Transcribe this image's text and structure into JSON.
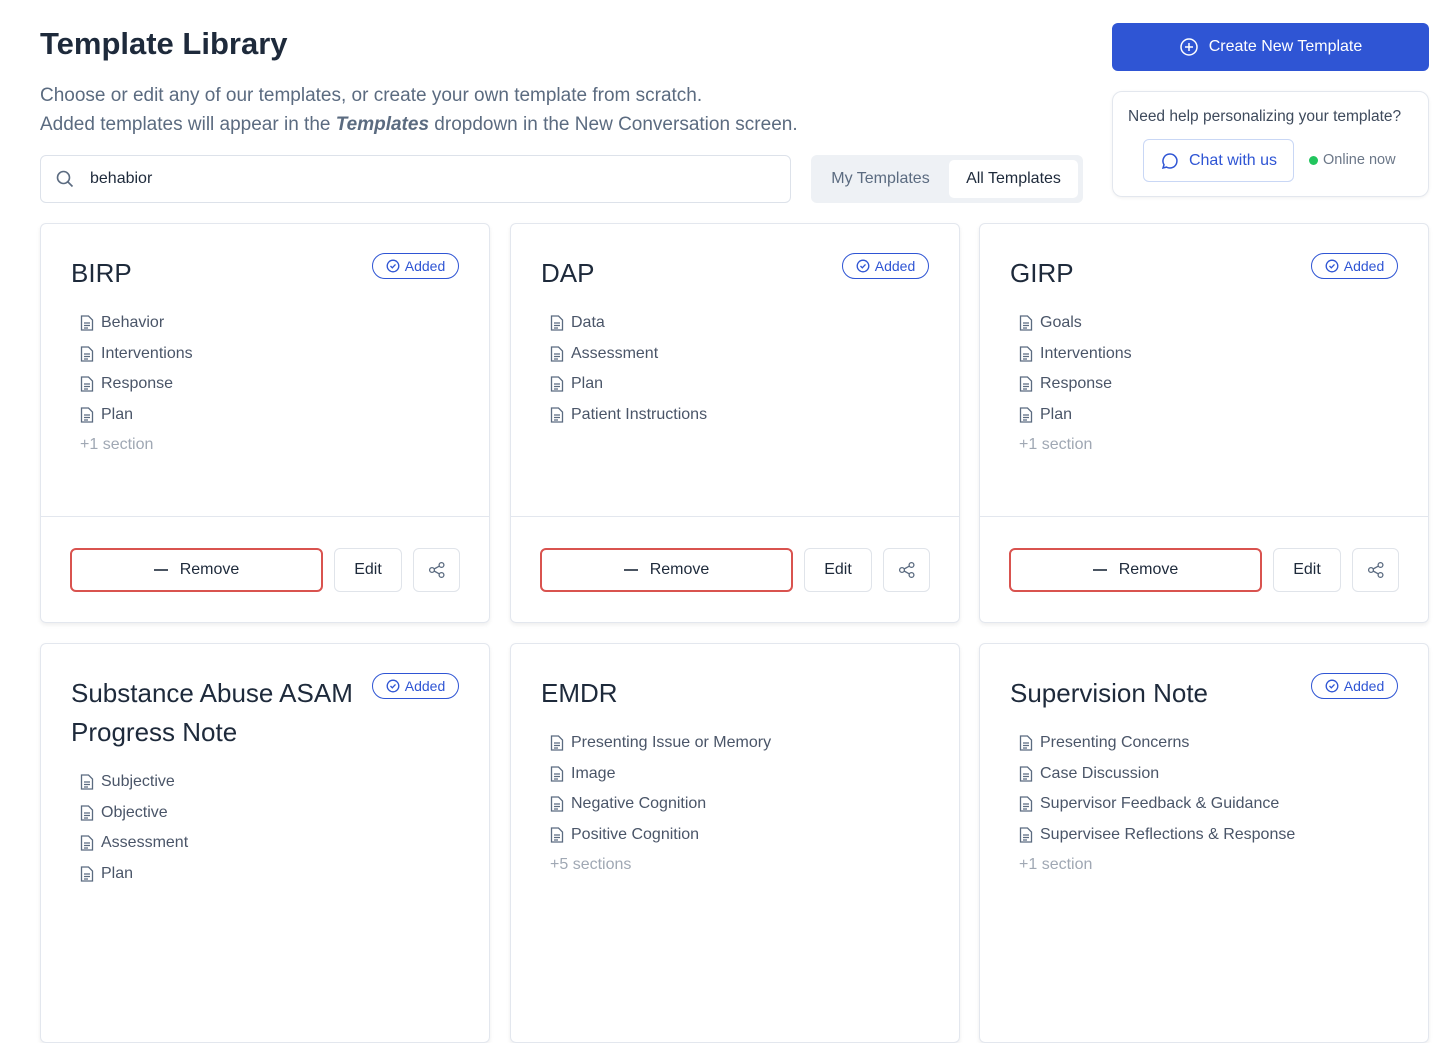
{
  "header": {
    "title": "Template Library",
    "subtitle_line1": "Choose or edit any of our templates, or create your own template from scratch.",
    "subtitle_line2_start": "Added templates will appear in the ",
    "subtitle_line2_emphasis": "Templates",
    "subtitle_line2_end": " dropdown in the New Conversation screen.",
    "create_button": "Create New Template"
  },
  "search": {
    "value": "behabior"
  },
  "tabs": {
    "items": [
      "My Templates",
      "All Templates"
    ],
    "active": "All Templates"
  },
  "help": {
    "text": "Need help personalizing your template?",
    "chat_button": "Chat with us",
    "status": "Online now"
  },
  "cards": [
    {
      "title": "BIRP",
      "badge": "Added",
      "sections": [
        "Behavior",
        "Interventions",
        "Response",
        "Plan"
      ],
      "more": "+1 section",
      "actions": {
        "remove": "Remove",
        "edit": "Edit"
      }
    },
    {
      "title": "DAP",
      "badge": "Added",
      "sections": [
        "Data",
        "Assessment",
        "Plan",
        "Patient Instructions"
      ],
      "actions": {
        "remove": "Remove",
        "edit": "Edit"
      }
    },
    {
      "title": "GIRP",
      "badge": "Added",
      "sections": [
        "Goals",
        "Interventions",
        "Response",
        "Plan"
      ],
      "more": "+1 section",
      "actions": {
        "remove": "Remove",
        "edit": "Edit"
      }
    },
    {
      "title": "Substance Abuse ASAM Progress Note",
      "badge": "Added",
      "sections": [
        "Subjective",
        "Objective",
        "Assessment",
        "Plan"
      ]
    },
    {
      "title": "EMDR",
      "sections": [
        "Presenting Issue or Memory",
        "Image",
        "Negative Cognition",
        "Positive Cognition"
      ],
      "more": "+5 sections"
    },
    {
      "title": "Supervision Note",
      "badge": "Added",
      "sections": [
        "Presenting Concerns",
        "Case Discussion",
        "Supervisor Feedback & Guidance",
        "Supervisee Reflections & Response"
      ],
      "more": "+1 section"
    }
  ]
}
